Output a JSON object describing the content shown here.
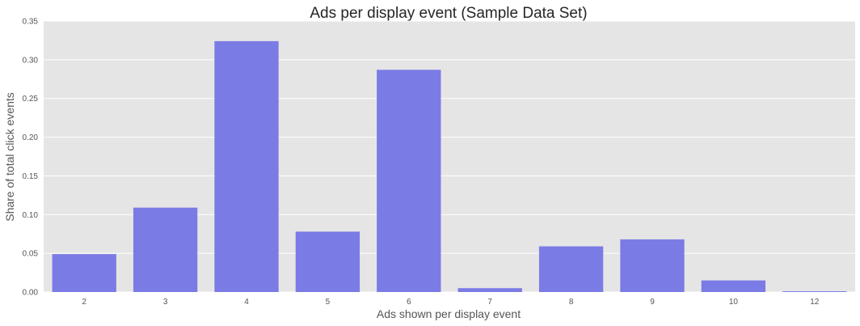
{
  "chart_data": {
    "type": "bar",
    "title": "Ads per display event (Sample Data Set)",
    "xlabel": "Ads shown per display event",
    "ylabel": "Share of total click events",
    "categories": [
      "2",
      "3",
      "4",
      "5",
      "6",
      "7",
      "8",
      "9",
      "10",
      "12"
    ],
    "values": [
      0.049,
      0.109,
      0.324,
      0.078,
      0.287,
      0.005,
      0.059,
      0.068,
      0.015,
      0.001
    ],
    "ylim": [
      0,
      0.35
    ],
    "yticks": [
      "0.00",
      "0.05",
      "0.10",
      "0.15",
      "0.20",
      "0.25",
      "0.30",
      "0.35"
    ],
    "grid": "horizontal",
    "colors": {
      "bar": "#7b7be5",
      "plot_background": "#e5e5e5",
      "grid": "#ffffff"
    }
  }
}
